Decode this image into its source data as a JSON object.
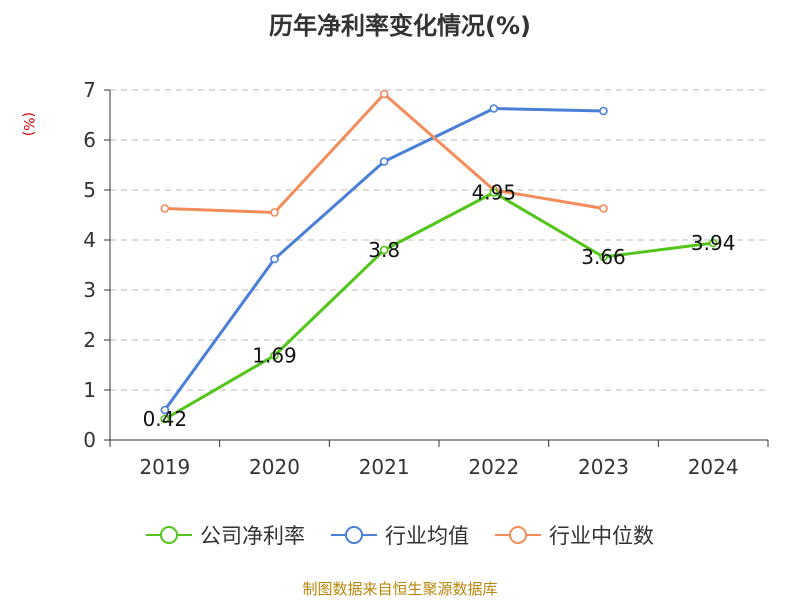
{
  "chart_data": {
    "type": "line",
    "title": "历年净利率变化情况(%)",
    "unit": "(%)",
    "categories": [
      "2019",
      "2020",
      "2021",
      "2022",
      "2023",
      "2024"
    ],
    "ylim": [
      0,
      7
    ],
    "yticks": [
      "0",
      "1",
      "2",
      "3",
      "4",
      "5",
      "6",
      "7"
    ],
    "grid": true,
    "legend_position": "bottom",
    "series": [
      {
        "name": "公司净利率",
        "color": "#52c41a",
        "values": [
          0.42,
          1.69,
          3.8,
          4.95,
          3.66,
          3.94
        ],
        "labels": true
      },
      {
        "name": "行业均值",
        "color": "#4a7fd8",
        "values": [
          0.6,
          3.62,
          5.57,
          6.63,
          6.58,
          null
        ],
        "labels": false
      },
      {
        "name": "行业中位数",
        "color": "#f28c5a",
        "values": [
          4.63,
          4.55,
          6.92,
          5.0,
          4.63,
          null
        ],
        "labels": false
      }
    ]
  },
  "source_note": "制图数据来自恒生聚源数据库"
}
